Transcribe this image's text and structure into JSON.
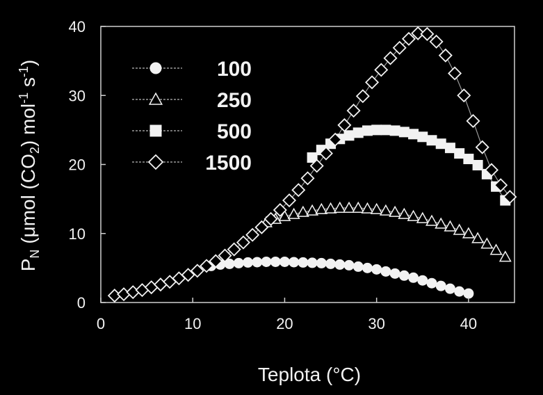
{
  "chart_data": {
    "type": "scatter",
    "title": "",
    "xlabel": "Teplota (°C)",
    "ylabel": "P_N (µmol (CO₂) mol⁻¹ s⁻¹)",
    "ylabel_parts": {
      "p": "P",
      "n_sub": "N",
      "mid": " (μmol (CO",
      "two_sub": "2",
      "mol": ") mol",
      "minus_one_sup": "-1",
      "s": " s",
      "minus_one_sup2": "-1",
      "close": ")"
    },
    "xlim": [
      0,
      45
    ],
    "ylim": [
      0,
      40
    ],
    "x_ticks": [
      "0",
      "10",
      "20",
      "30",
      "40"
    ],
    "y_ticks": [
      "0",
      "10",
      "20",
      "30",
      "40"
    ],
    "grid": false,
    "legend_position": "top-left",
    "colors": {
      "background": "#000000",
      "frame": "#d0d0d0",
      "marker_fill": "#f2f2f2",
      "marker_stroke": "#f2f2f2",
      "line": "#9a9a9a",
      "text": "#f2f2f2"
    },
    "series": [
      {
        "name": "100",
        "marker": "filled-circle",
        "x": [
          12,
          13,
          14,
          15,
          16,
          17,
          18,
          19,
          20,
          21,
          22,
          23,
          24,
          25,
          26,
          27,
          28,
          29,
          30,
          31,
          32,
          33,
          34,
          35,
          36,
          37,
          38,
          39,
          40
        ],
        "y": [
          5.3,
          5.5,
          5.6,
          5.7,
          5.8,
          5.85,
          5.9,
          5.9,
          5.9,
          5.85,
          5.8,
          5.75,
          5.7,
          5.6,
          5.5,
          5.4,
          5.2,
          5.0,
          4.8,
          4.5,
          4.2,
          3.9,
          3.6,
          3.2,
          2.8,
          2.4,
          2.0,
          1.6,
          1.3
        ]
      },
      {
        "name": "250",
        "marker": "open-triangle",
        "x": [
          18,
          19,
          20,
          21,
          22,
          23,
          24,
          25,
          26,
          27,
          28,
          29,
          30,
          31,
          32,
          33,
          34,
          35,
          36,
          37,
          38,
          39,
          40,
          41,
          42,
          43,
          44
        ],
        "y": [
          11.6,
          12.1,
          12.5,
          12.8,
          13.1,
          13.3,
          13.5,
          13.6,
          13.7,
          13.7,
          13.7,
          13.6,
          13.5,
          13.3,
          13.1,
          12.8,
          12.5,
          12.2,
          11.8,
          11.4,
          11.0,
          10.5,
          10.0,
          9.3,
          8.5,
          7.6,
          6.6
        ]
      },
      {
        "name": "500",
        "marker": "filled-square",
        "x": [
          23,
          24,
          25,
          26,
          27,
          28,
          29,
          30,
          31,
          32,
          33,
          34,
          35,
          36,
          37,
          38,
          39,
          40,
          41,
          42,
          43,
          44
        ],
        "y": [
          21.0,
          22.1,
          23.0,
          23.7,
          24.2,
          24.6,
          24.9,
          25.0,
          25.0,
          24.9,
          24.7,
          24.4,
          24.0,
          23.5,
          23.0,
          22.4,
          21.6,
          20.8,
          19.9,
          18.6,
          16.8,
          14.8
        ]
      },
      {
        "name": "1500",
        "marker": "open-diamond",
        "x": [
          1.5,
          2.5,
          3.5,
          4.5,
          5.5,
          6.5,
          7.5,
          8.5,
          9.5,
          10.5,
          11.5,
          12.5,
          13.5,
          14.5,
          15.5,
          16.5,
          17.5,
          18.5,
          19.5,
          20.5,
          21.5,
          22.5,
          23.5,
          24.5,
          25.5,
          26.5,
          27.5,
          28.5,
          29.5,
          30.5,
          31.5,
          32.5,
          33.5,
          34.5,
          35.5,
          36.5,
          37.5,
          38.5,
          39.5,
          40.5,
          41.5,
          42.5,
          43.5,
          44.5
        ],
        "y": [
          1.0,
          1.2,
          1.5,
          1.8,
          2.2,
          2.6,
          3.0,
          3.5,
          4.0,
          4.6,
          5.3,
          6.0,
          6.8,
          7.7,
          8.7,
          9.8,
          10.9,
          12.1,
          13.4,
          14.8,
          16.3,
          18.0,
          19.8,
          21.6,
          23.6,
          25.7,
          27.8,
          29.9,
          31.9,
          33.7,
          35.4,
          36.9,
          38.2,
          39.0,
          38.9,
          37.8,
          35.8,
          33.2,
          30.0,
          26.3,
          22.5,
          19.2,
          17.0,
          15.3
        ]
      }
    ]
  }
}
